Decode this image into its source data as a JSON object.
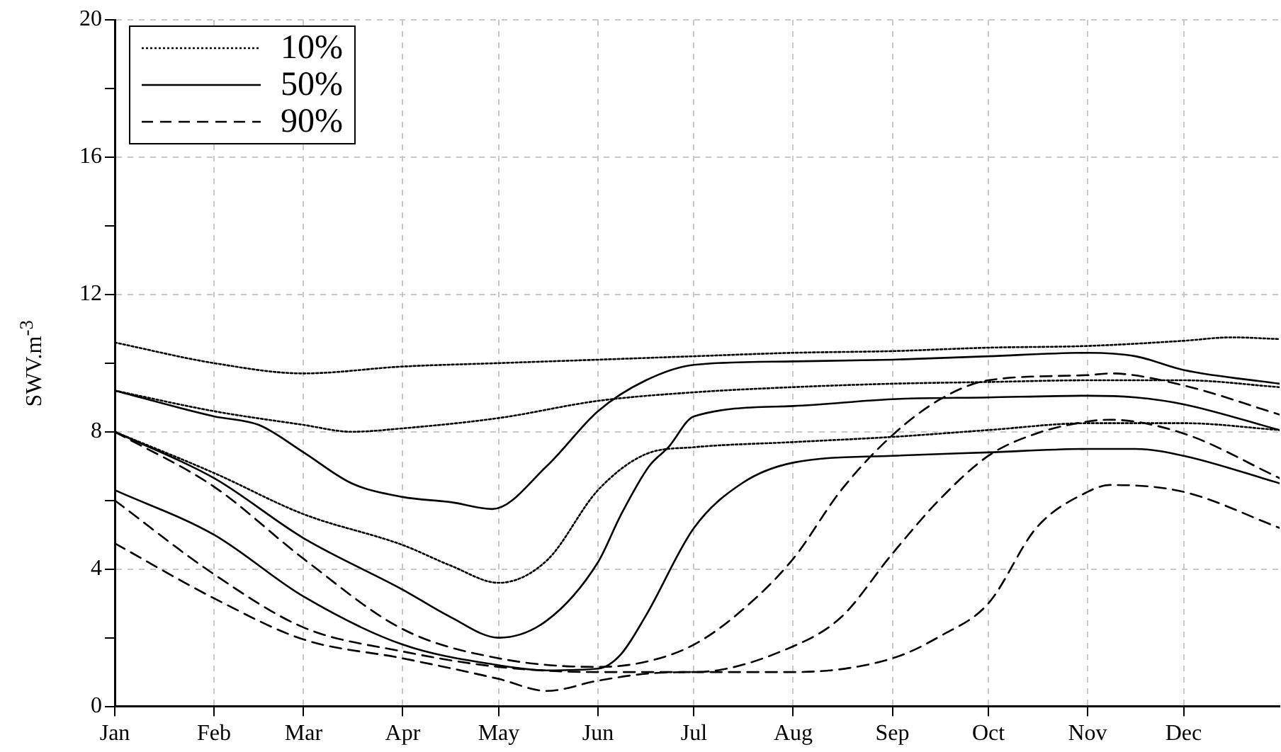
{
  "chart_data": {
    "type": "line",
    "ylabel": "SWV.m$^{-3}$",
    "xlim": [
      "--01-01",
      "--12-31"
    ],
    "xticks": [
      {
        "value": "--01-01",
        "label": "Jan"
      },
      {
        "value": "--02-01",
        "label": "Feb"
      },
      {
        "value": "--03-01",
        "label": "Mar"
      },
      {
        "value": "--04-01",
        "label": "Apr"
      },
      {
        "value": "--05-01",
        "label": "May"
      },
      {
        "value": "--06-01",
        "label": "Jun"
      },
      {
        "value": "--07-01",
        "label": "Jul"
      },
      {
        "value": "--08-01",
        "label": "Aug"
      },
      {
        "value": "--09-01",
        "label": "Sep"
      },
      {
        "value": "--10-01",
        "label": "Oct"
      },
      {
        "value": "--11-01",
        "label": "Nov"
      },
      {
        "value": "--12-01",
        "label": "Dec"
      }
    ],
    "ylim": [
      0,
      20
    ],
    "yticks": [
      0,
      {
        "value": 2,
        "label": null
      },
      4,
      {
        "value": 6,
        "label": null
      },
      8,
      {
        "value": 10,
        "label": null
      },
      12,
      {
        "value": 14,
        "label": null
      },
      16,
      {
        "value": 18,
        "label": null
      },
      20
    ],
    "grid": true,
    "legend": "top left",
    "marker": "none",
    "series": [
      {
        "name": "10%",
        "color": "#000000",
        "line_style": "dotted",
        "x": [
          "--01-01",
          "--02-01",
          "--03-01",
          "--04-01",
          "--05-01",
          "--06-01",
          "--07-01",
          "--08-01",
          "--09-01",
          "--10-01",
          "--11-01",
          "--12-01",
          "--12-16",
          "--12-31"
        ],
        "values": [
          10.6,
          10.0,
          9.7,
          9.9,
          10.0,
          10.1,
          10.2,
          10.3,
          10.35,
          10.45,
          10.5,
          10.65,
          10.75,
          10.7
        ]
      },
      {
        "color": "#000000",
        "line_style": "dotted",
        "x": [
          "--01-01",
          "--02-01",
          "--03-01",
          "--03-16",
          "--04-01",
          "--05-01",
          "--06-01",
          "--07-01",
          "--08-01",
          "--09-01",
          "--10-01",
          "--11-01",
          "--12-01",
          "--12-31"
        ],
        "values": [
          9.2,
          8.6,
          8.2,
          8.0,
          8.1,
          8.4,
          8.9,
          9.15,
          9.3,
          9.4,
          9.45,
          9.5,
          9.5,
          9.3
        ]
      },
      {
        "color": "#000000",
        "line_style": "dotted",
        "x": [
          "--01-01",
          "--02-01",
          "--03-01",
          "--04-01",
          "--04-16",
          "--05-01",
          "--05-16",
          "--06-01",
          "--06-16",
          "--07-01",
          "--08-01",
          "--09-01",
          "--10-01",
          "--11-01",
          "--12-01",
          "--12-31"
        ],
        "values": [
          8.0,
          6.8,
          5.6,
          4.7,
          4.1,
          3.6,
          4.25,
          6.3,
          7.35,
          7.55,
          7.7,
          7.85,
          8.05,
          8.25,
          8.25,
          8.05
        ]
      },
      {
        "name": "50%",
        "color": "#000000",
        "line_style": "solid",
        "x": [
          "--01-01",
          "--02-01",
          "--02-15",
          "--03-01",
          "--03-16",
          "--04-01",
          "--04-16",
          "--04-29",
          "--05-16",
          "--06-01",
          "--06-16",
          "--07-01",
          "--08-01",
          "--09-01",
          "--10-01",
          "--11-01",
          "--11-16",
          "--12-01",
          "--12-31"
        ],
        "values": [
          9.2,
          8.45,
          8.2,
          7.4,
          6.5,
          6.1,
          5.95,
          5.75,
          7.0,
          8.6,
          9.5,
          9.95,
          10.05,
          10.1,
          10.2,
          10.3,
          10.2,
          9.8,
          9.4
        ]
      },
      {
        "color": "#000000",
        "line_style": "solid",
        "x": [
          "--01-01",
          "--02-01",
          "--03-01",
          "--04-01",
          "--04-16",
          "--05-01",
          "--05-16",
          "--06-01",
          "--06-08",
          "--06-17",
          "--06-23",
          "--07-01",
          "--08-01",
          "--09-01",
          "--10-01",
          "--11-01",
          "--11-16",
          "--12-01",
          "--12-31"
        ],
        "values": [
          8.0,
          6.65,
          4.9,
          3.4,
          2.6,
          2.0,
          2.5,
          4.2,
          5.55,
          7.0,
          7.55,
          8.45,
          8.75,
          8.95,
          9.0,
          9.05,
          9.0,
          8.8,
          8.05
        ]
      },
      {
        "color": "#000000",
        "line_style": "solid",
        "x": [
          "--01-01",
          "--02-01",
          "--03-01",
          "--04-01",
          "--05-01",
          "--05-16",
          "--06-01",
          "--06-08",
          "--06-16",
          "--07-01",
          "--07-16",
          "--08-01",
          "--09-01",
          "--10-01",
          "--11-01",
          "--11-16",
          "--12-01",
          "--12-31"
        ],
        "values": [
          6.3,
          5.0,
          3.2,
          1.8,
          1.2,
          1.05,
          1.1,
          1.5,
          2.65,
          5.2,
          6.5,
          7.1,
          7.3,
          7.4,
          7.5,
          7.5,
          7.3,
          6.5
        ]
      },
      {
        "name": "90%",
        "color": "#000000",
        "line_style": "dashed",
        "x": [
          "--01-01",
          "--02-01",
          "--03-01",
          "--04-01",
          "--05-01",
          "--06-01",
          "--06-16",
          "--07-01",
          "--07-16",
          "--08-01",
          "--08-16",
          "--09-01",
          "--09-16",
          "--10-01",
          "--11-01",
          "--11-08",
          "--12-01",
          "--12-31"
        ],
        "values": [
          8.0,
          6.4,
          4.3,
          2.25,
          1.4,
          1.15,
          1.3,
          1.8,
          2.8,
          4.3,
          6.3,
          7.9,
          8.95,
          9.5,
          9.65,
          9.7,
          9.35,
          8.5
        ]
      },
      {
        "color": "#000000",
        "line_style": "dashed",
        "x": [
          "--01-01",
          "--02-01",
          "--03-01",
          "--04-01",
          "--05-01",
          "--06-01",
          "--07-01",
          "--08-01",
          "--08-16",
          "--09-01",
          "--09-16",
          "--10-01",
          "--10-16",
          "--11-01",
          "--11-08",
          "--12-01",
          "--12-31"
        ],
        "values": [
          6.0,
          3.85,
          2.3,
          1.6,
          1.15,
          1.0,
          1.0,
          1.75,
          2.6,
          4.45,
          6.05,
          7.3,
          7.95,
          8.3,
          8.35,
          7.95,
          6.65
        ]
      },
      {
        "color": "#000000",
        "line_style": "dashed",
        "x": [
          "--01-01",
          "--02-01",
          "--03-01",
          "--04-01",
          "--05-01",
          "--05-16",
          "--06-01",
          "--06-16",
          "--07-01",
          "--08-01",
          "--09-01",
          "--09-16",
          "--10-01",
          "--10-16",
          "--11-01",
          "--11-08",
          "--12-01",
          "--12-31"
        ],
        "values": [
          4.75,
          3.15,
          1.95,
          1.4,
          0.8,
          0.45,
          0.75,
          0.95,
          1.0,
          1.0,
          1.4,
          2.05,
          3.0,
          5.2,
          6.25,
          6.45,
          6.25,
          5.2
        ]
      }
    ]
  }
}
